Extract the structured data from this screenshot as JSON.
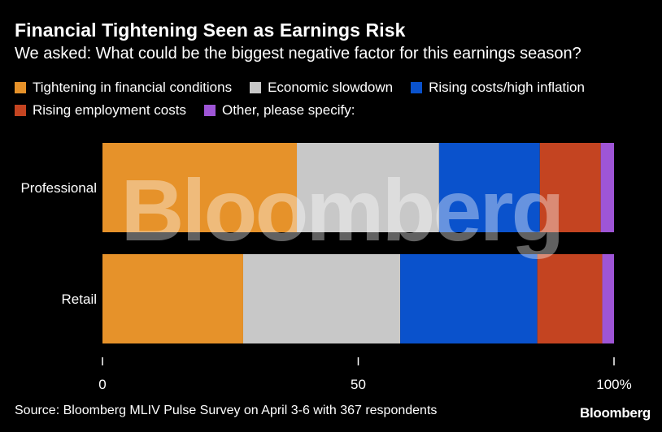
{
  "header": {
    "title": "Financial Tightening Seen as Earnings Risk",
    "subtitle": "We asked: What could be the biggest negative factor for this earnings season?"
  },
  "legend": [
    {
      "label": "Tightening in financial conditions",
      "color": "#E6922A"
    },
    {
      "label": "Economic slowdown",
      "color": "#C8C8C8"
    },
    {
      "label": "Rising costs/high inflation",
      "color": "#0A52CC"
    },
    {
      "label": "Rising employment costs",
      "color": "#C44421"
    },
    {
      "label": "Other, please specify:",
      "color": "#9E55D6"
    }
  ],
  "chart_data": {
    "type": "bar",
    "orientation": "horizontal",
    "stacked": true,
    "title": "Financial Tightening Seen as Earnings Risk",
    "subtitle": "We asked: What could be the biggest negative factor for this earnings season?",
    "categories": [
      "Professional",
      "Retail"
    ],
    "series": [
      {
        "name": "Tightening in financial conditions",
        "color": "#E6922A",
        "values": [
          38,
          27.5
        ]
      },
      {
        "name": "Economic slowdown",
        "color": "#C8C8C8",
        "values": [
          27.8,
          30.7
        ]
      },
      {
        "name": "Rising costs/high inflation",
        "color": "#0A52CC",
        "values": [
          19.7,
          26.8
        ]
      },
      {
        "name": "Rising employment costs",
        "color": "#C44421",
        "values": [
          11.9,
          12.7
        ]
      },
      {
        "name": "Other, please specify:",
        "color": "#9E55D6",
        "values": [
          2.6,
          2.3
        ]
      }
    ],
    "xlim": [
      0,
      100
    ],
    "xticks": [
      {
        "value": 0,
        "label": "0"
      },
      {
        "value": 50,
        "label": "50"
      },
      {
        "value": 100,
        "label": "100%"
      }
    ],
    "xlabel": "",
    "ylabel": ""
  },
  "watermark": "Bloomberg",
  "footer": {
    "source": "Source: Bloomberg MLIV Pulse Survey on April 3-6 with 367 respondents",
    "brand": "Bloomberg"
  }
}
